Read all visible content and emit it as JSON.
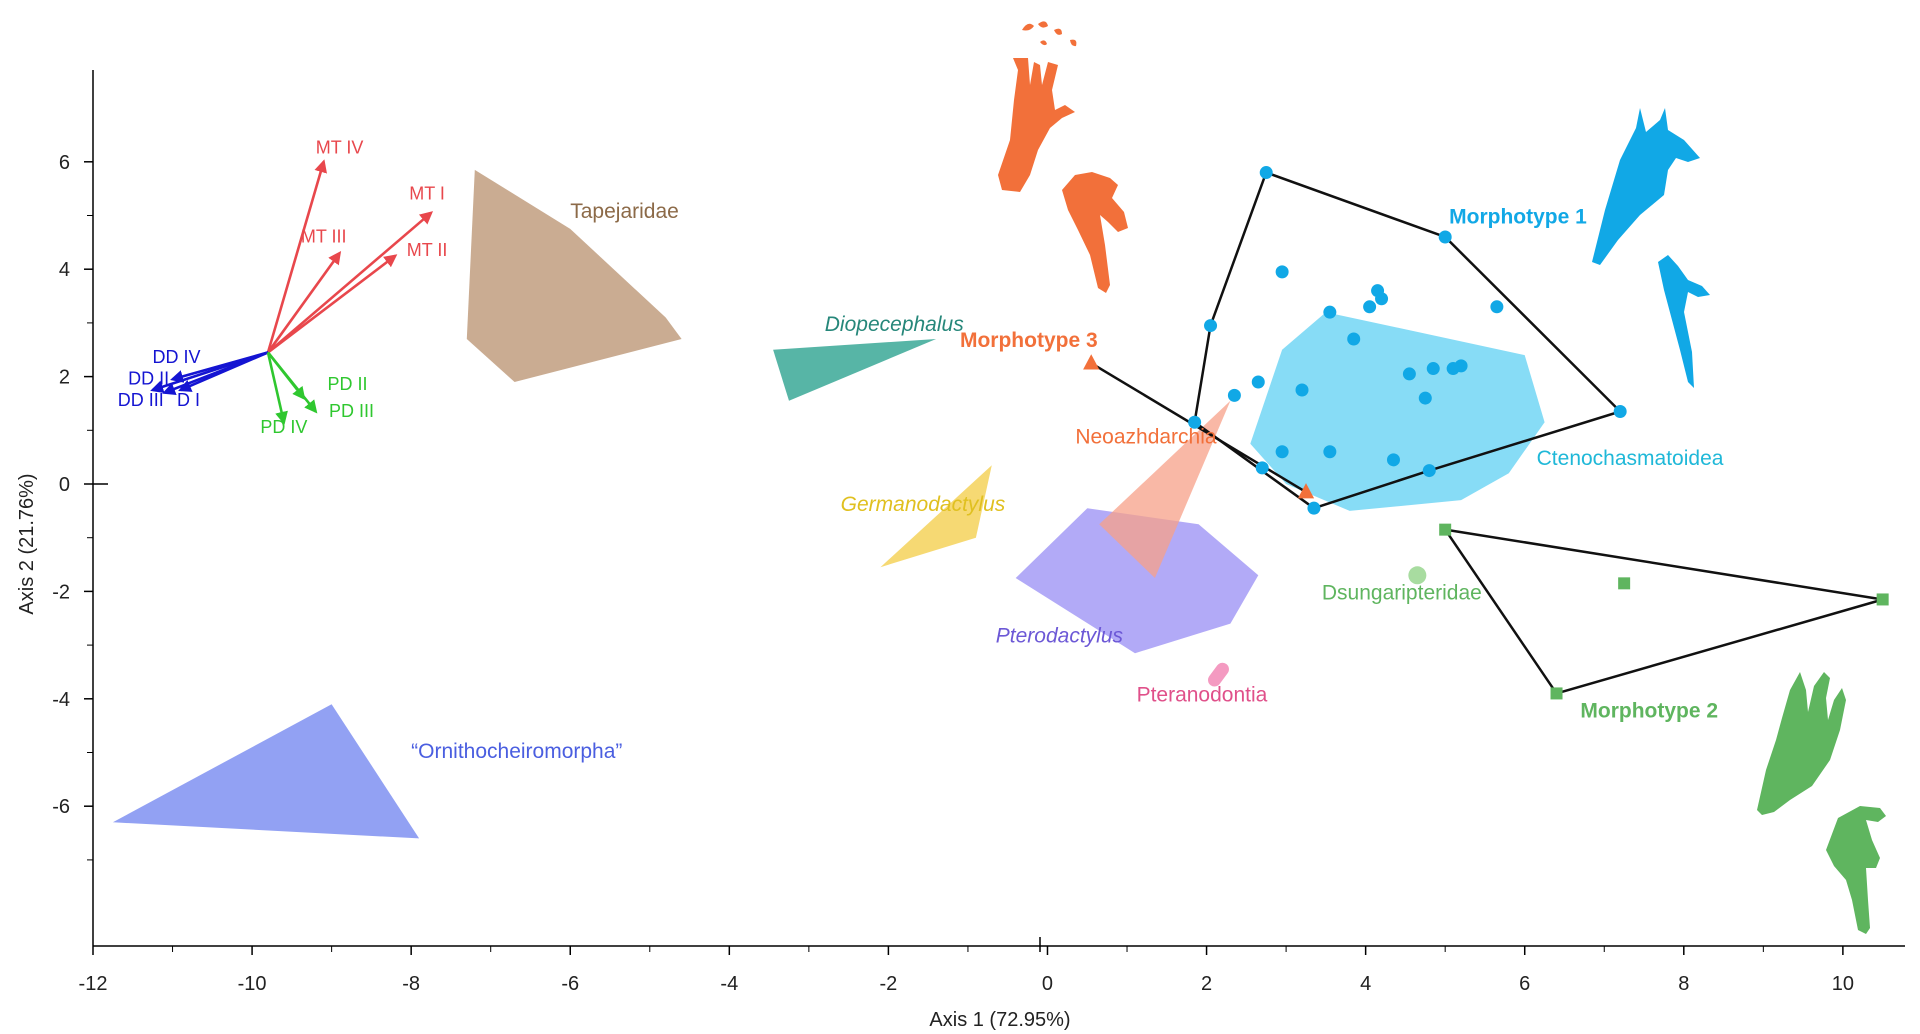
{
  "chart_data": {
    "type": "scatter",
    "xlabel": "Axis 1 (72.95%)",
    "ylabel": "Axis 2 (21.76%)",
    "xlim": [
      -12,
      11
    ],
    "ylim": [
      -7,
      6.5
    ],
    "x_ticks": [
      -12,
      -10,
      -8,
      -6,
      -4,
      -2,
      0,
      2,
      4,
      6,
      8,
      10
    ],
    "y_ticks": [
      6,
      4,
      2,
      0,
      -2,
      -4,
      -6
    ],
    "grid": false,
    "colors": {
      "mt": "#e8474c",
      "dd": "#1414d2",
      "pd": "#2fc72f",
      "m1": "#11a8e6",
      "m2": "#5fb55f",
      "m3": "#f2703a"
    },
    "loadings_origin": [
      -9.8,
      2.45
    ],
    "loadings": [
      {
        "name": "MT IV",
        "group": "mt",
        "end": [
          -9.1,
          6.0
        ],
        "label_pos": [
          -8.9,
          6.15
        ]
      },
      {
        "name": "MT I",
        "group": "mt",
        "end": [
          -7.75,
          5.05
        ],
        "label_pos": [
          -7.8,
          5.3
        ]
      },
      {
        "name": "MT III",
        "group": "mt",
        "end": [
          -8.9,
          4.3
        ],
        "label_pos": [
          -9.1,
          4.5
        ]
      },
      {
        "name": "MT II",
        "group": "mt",
        "end": [
          -8.2,
          4.25
        ],
        "label_pos": [
          -7.8,
          4.25
        ]
      },
      {
        "name": "DD IV",
        "group": "dd",
        "end": [
          -11.0,
          1.95
        ],
        "label_pos": [
          -10.95,
          2.25
        ]
      },
      {
        "name": "DD II",
        "group": "dd",
        "end": [
          -11.25,
          1.75
        ],
        "label_pos": [
          -11.3,
          1.85
        ]
      },
      {
        "name": "DD III",
        "group": "dd",
        "end": [
          -11.1,
          1.7
        ],
        "label_pos": [
          -11.4,
          1.45
        ]
      },
      {
        "name": "D I",
        "group": "dd",
        "end": [
          -10.9,
          1.75
        ],
        "label_pos": [
          -10.8,
          1.45
        ]
      },
      {
        "name": "PD II",
        "group": "pd",
        "end": [
          -9.35,
          1.6
        ],
        "label_pos": [
          -8.8,
          1.75
        ]
      },
      {
        "name": "PD III",
        "group": "pd",
        "end": [
          -9.2,
          1.35
        ],
        "label_pos": [
          -8.75,
          1.25
        ]
      },
      {
        "name": "PD IV",
        "group": "pd",
        "end": [
          -9.6,
          1.15
        ],
        "label_pos": [
          -9.6,
          0.95
        ]
      }
    ],
    "regions": [
      {
        "name": "Tapejaridae",
        "color": "#c7a88c",
        "opacity": 0.95,
        "italic": false,
        "label_color": "#8c6a48",
        "label_pos": [
          -6.0,
          4.95
        ],
        "points": [
          [
            -7.2,
            5.85
          ],
          [
            -6.0,
            4.75
          ],
          [
            -4.8,
            3.1
          ],
          [
            -4.6,
            2.7
          ],
          [
            -6.7,
            1.9
          ],
          [
            -7.3,
            2.7
          ]
        ]
      },
      {
        "name": "Diopecephalus",
        "color": "#3aa896",
        "opacity": 0.85,
        "italic": true,
        "label_color": "#26877a",
        "label_pos": [
          -2.8,
          2.85
        ],
        "points": [
          [
            -3.45,
            2.5
          ],
          [
            -1.4,
            2.7
          ],
          [
            -3.25,
            1.55
          ]
        ]
      },
      {
        "name": "Germanodactylus",
        "color": "#f5d25a",
        "opacity": 0.85,
        "italic": true,
        "label_color": "#e0c020",
        "label_pos": [
          -2.6,
          -0.5
        ],
        "points": [
          [
            -0.7,
            0.35
          ],
          [
            -0.9,
            -1.0
          ],
          [
            -2.1,
            -1.55
          ]
        ]
      },
      {
        "name": "Pterodactylus",
        "color": "#9f95f5",
        "opacity": 0.8,
        "italic": true,
        "label_color": "#6c58d6",
        "label_pos": [
          -0.65,
          -2.95
        ],
        "points": [
          [
            0.5,
            -0.45
          ],
          [
            1.9,
            -0.75
          ],
          [
            2.65,
            -1.7
          ],
          [
            2.3,
            -2.6
          ],
          [
            1.1,
            -3.15
          ],
          [
            -0.4,
            -1.75
          ]
        ]
      },
      {
        "name": "Neoazhdarchia",
        "color": "#f7a088",
        "opacity": 0.75,
        "italic": false,
        "label_color": "#f2703a",
        "label_pos": [
          0.35,
          0.75
        ],
        "points": [
          [
            2.3,
            1.55
          ],
          [
            1.35,
            -1.75
          ],
          [
            0.65,
            -0.75
          ]
        ]
      },
      {
        "name": "Ctenochasmatoidea",
        "color": "#7ad8f5",
        "opacity": 0.9,
        "italic": false,
        "label_color": "#1fb8d8",
        "label_pos": [
          6.15,
          0.35
        ],
        "points": [
          [
            3.5,
            3.2
          ],
          [
            6.0,
            2.4
          ],
          [
            6.25,
            1.15
          ],
          [
            5.8,
            0.2
          ],
          [
            5.2,
            -0.3
          ],
          [
            3.8,
            -0.5
          ],
          [
            3.0,
            0.0
          ],
          [
            2.55,
            0.75
          ],
          [
            2.95,
            2.5
          ]
        ]
      },
      {
        "name": "“Ornithocheiromorpha”",
        "color": "#8c9cf2",
        "opacity": 0.95,
        "italic": false,
        "label_color": "#4a5ee0",
        "label_pos": [
          -8.0,
          -5.1
        ],
        "points": [
          [
            -9.0,
            -4.1
          ],
          [
            -7.9,
            -6.6
          ],
          [
            -11.75,
            -6.3
          ]
        ]
      }
    ],
    "morphotype_1": {
      "name": "Morphotype 1",
      "hull": [
        [
          2.75,
          5.8
        ],
        [
          5.0,
          4.6
        ],
        [
          7.2,
          1.35
        ],
        [
          4.8,
          0.25
        ],
        [
          3.35,
          -0.45
        ],
        [
          1.85,
          1.15
        ],
        [
          2.05,
          2.95
        ]
      ],
      "points": [
        [
          2.75,
          5.8
        ],
        [
          5.0,
          4.6
        ],
        [
          7.2,
          1.35
        ],
        [
          4.8,
          0.25
        ],
        [
          3.35,
          -0.45
        ],
        [
          1.85,
          1.15
        ],
        [
          2.05,
          2.95
        ],
        [
          2.95,
          3.95
        ],
        [
          4.15,
          3.6
        ],
        [
          4.2,
          3.45
        ],
        [
          4.05,
          3.3
        ],
        [
          5.65,
          3.3
        ],
        [
          3.55,
          3.2
        ],
        [
          3.85,
          2.7
        ],
        [
          5.2,
          2.2
        ],
        [
          5.1,
          2.15
        ],
        [
          4.85,
          2.15
        ],
        [
          4.55,
          2.05
        ],
        [
          2.65,
          1.9
        ],
        [
          2.35,
          1.65
        ],
        [
          3.2,
          1.75
        ],
        [
          4.75,
          1.6
        ],
        [
          2.95,
          0.6
        ],
        [
          3.55,
          0.6
        ],
        [
          4.35,
          0.45
        ],
        [
          2.7,
          0.3
        ]
      ],
      "label_pos": [
        5.05,
        4.85
      ]
    },
    "morphotype_2": {
      "name": "Morphotype 2",
      "points": [
        [
          5.0,
          -0.85
        ],
        [
          10.5,
          -2.15
        ],
        [
          6.4,
          -3.9
        ]
      ],
      "extra_point": [
        7.25,
        -1.85
      ],
      "label_pos": [
        6.7,
        -4.35
      ]
    },
    "morphotype_3": {
      "name": "Morphotype 3",
      "line": [
        [
          0.55,
          2.25
        ],
        [
          3.25,
          -0.15
        ]
      ],
      "label_pos": [
        -1.1,
        2.55
      ]
    },
    "dsungaripteridae": {
      "name": "Dsungaripteridae",
      "color": "#a8dca0",
      "label_color": "#5fb55f",
      "point": [
        4.65,
        -1.7
      ],
      "label_pos": [
        3.45,
        -2.15
      ]
    },
    "pteranodontia": {
      "name": "Pteranodontia",
      "color": "#f49ac1",
      "label_color": "#e0508a",
      "segment": [
        [
          2.1,
          -3.65
        ],
        [
          2.2,
          -3.45
        ]
      ],
      "label_pos": [
        1.12,
        -4.05
      ]
    },
    "silhouettes": [
      {
        "name": "morphotype-3-foot-icon",
        "color": "#f2703a"
      },
      {
        "name": "morphotype-3-hand-icon",
        "color": "#f2703a"
      },
      {
        "name": "morphotype-1-foot-icon",
        "color": "#11a8e6"
      },
      {
        "name": "morphotype-1-hand-icon",
        "color": "#11a8e6"
      },
      {
        "name": "morphotype-2-foot-icon",
        "color": "#5fb55f"
      },
      {
        "name": "morphotype-2-hand-icon",
        "color": "#5fb55f"
      }
    ]
  }
}
